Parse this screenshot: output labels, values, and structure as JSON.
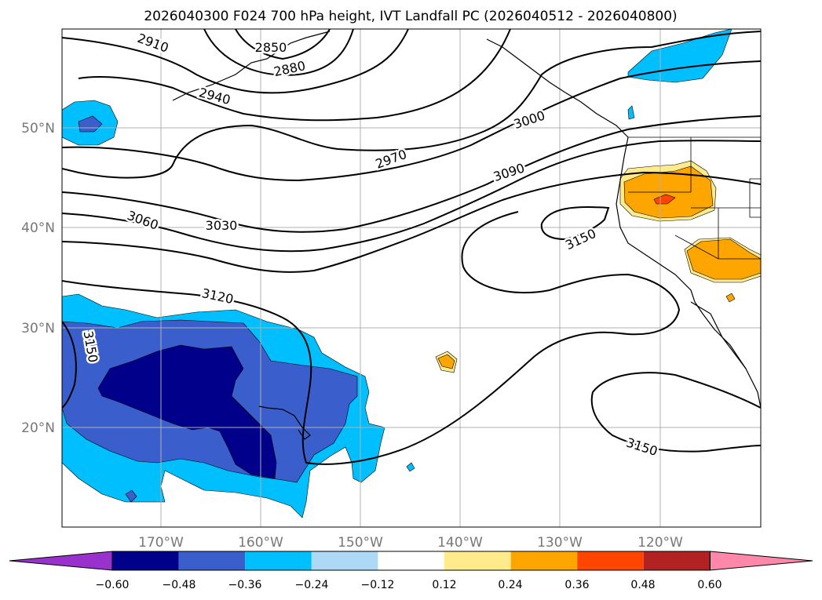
{
  "title": "2026040300 F024 700 hPa height, IVT Landfall PC (2026040512 - 2026040800)",
  "lat_labels": [
    "50°N",
    "40°N",
    "30°N",
    "20°N"
  ],
  "lon_labels": [
    "170°W",
    "160°W",
    "150°W",
    "140°W",
    "130°W",
    "120°W"
  ],
  "contour_labels": [
    "2910",
    "2850",
    "2880",
    "2940",
    "3000",
    "2970",
    "3090",
    "3060",
    "3030",
    "3150",
    "3120",
    "3150",
    "3150"
  ],
  "colorbar": {
    "ticks": [
      "−0.60",
      "−0.48",
      "−0.36",
      "−0.24",
      "−0.12",
      "0.12",
      "0.24",
      "0.36",
      "0.48",
      "0.60"
    ],
    "colors": [
      "#9932cc",
      "#00008b",
      "#3a5fcd",
      "#00bfff",
      "#add8f6",
      "#ffffff",
      "#ffeb8c",
      "#ffa500",
      "#ff4500",
      "#b22222",
      "#ff88aa"
    ]
  }
}
